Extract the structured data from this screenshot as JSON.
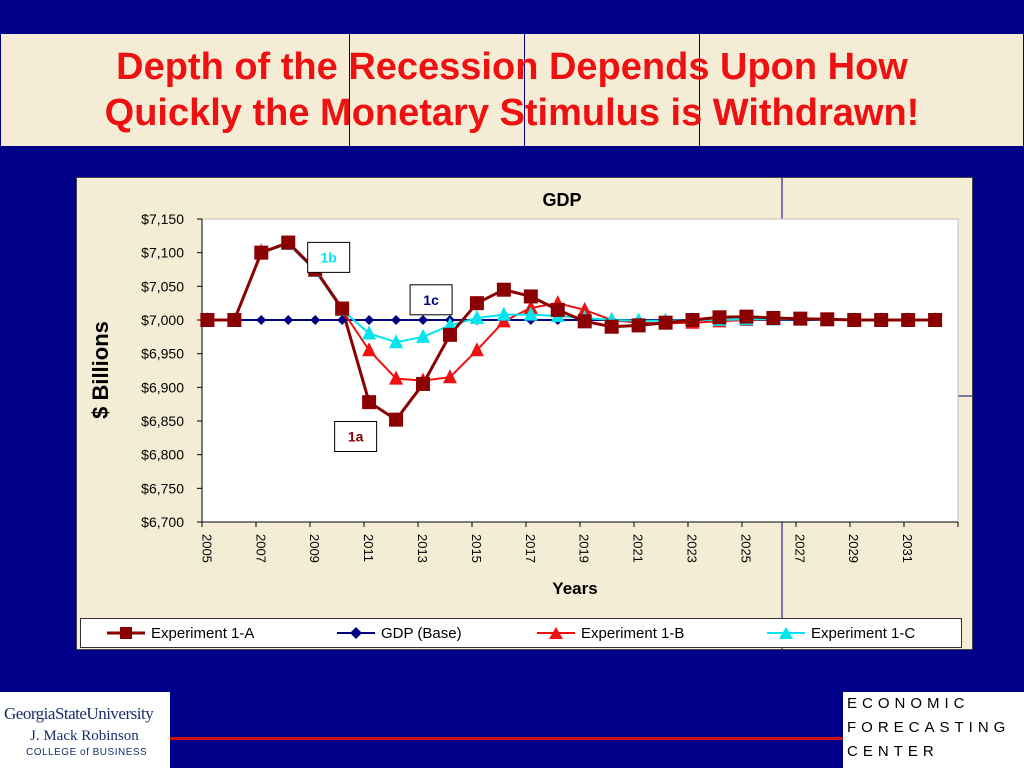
{
  "slide": {
    "title_line1": "Depth of the Recession Depends Upon How",
    "title_line2": "Quickly the Monetary Stimulus is Withdrawn!"
  },
  "logos": {
    "gsu_university": "GeorgiaStateUniversity",
    "gsu_name": "J. Mack Robinson",
    "gsu_college": "COLLEGE of BUSINESS",
    "efc_line1": "ECONOMIC",
    "efc_line2": "FORECASTING",
    "efc_line3": "CENTER"
  },
  "colors": {
    "background": "#00008b",
    "title": "#ee1111",
    "experiment_1a": "#8b0000",
    "gdp_base": "#000080",
    "experiment_1b": "#ee1111",
    "experiment_1c": "#00e5ee"
  },
  "chart_data": {
    "type": "line",
    "title": "GDP",
    "xlabel": "Years",
    "ylabel": "$ Billions",
    "ylim": [
      6700,
      7150
    ],
    "yticks": [
      6700,
      6750,
      6800,
      6850,
      6900,
      6950,
      7000,
      7050,
      7100,
      7150
    ],
    "ytick_labels": [
      "$6,700",
      "$6,750",
      "$6,800",
      "$6,850",
      "$6,900",
      "$6,950",
      "$7,000",
      "$7,050",
      "$7,100",
      "$7,150"
    ],
    "x": [
      2005,
      2006,
      2007,
      2008,
      2009,
      2010,
      2011,
      2012,
      2013,
      2014,
      2015,
      2016,
      2017,
      2018,
      2019,
      2020,
      2021,
      2022,
      2023,
      2024,
      2025,
      2026,
      2027,
      2028,
      2029,
      2030,
      2031,
      2032
    ],
    "xtick_labels": [
      "2005",
      "2007",
      "2009",
      "2011",
      "2013",
      "2015",
      "2017",
      "2019",
      "2021",
      "2023",
      "2025",
      "2027",
      "2029",
      "2031"
    ],
    "grid": false,
    "legend_position": "bottom",
    "series": [
      {
        "name": "Experiment 1-A",
        "marker": "square",
        "color": "#8b0000",
        "values": [
          7000,
          7000,
          7100,
          7115,
          7075,
          7017,
          6878,
          6852,
          6905,
          6978,
          7025,
          7045,
          7035,
          7015,
          6998,
          6990,
          6992,
          6996,
          7000,
          7004,
          7005,
          7003,
          7002,
          7001,
          7000,
          7000,
          7000,
          7000
        ]
      },
      {
        "name": "GDP (Base)",
        "marker": "diamond",
        "color": "#000080",
        "values": [
          7000,
          7000,
          7000,
          7000,
          7000,
          7000,
          7000,
          7000,
          7000,
          7000,
          7000,
          7000,
          7000,
          7000,
          7000,
          7000,
          7000,
          7000,
          7000,
          7000,
          7000,
          7000,
          7000,
          7000,
          7000,
          7000,
          7000,
          7000
        ]
      },
      {
        "name": "Experiment 1-B",
        "marker": "triangle",
        "color": "#ee1111",
        "values": [
          7000,
          7000,
          7102,
          7113,
          7073,
          7015,
          6955,
          6913,
          6910,
          6915,
          6955,
          6998,
          7018,
          7025,
          7015,
          7000,
          6996,
          6995,
          6996,
          6998,
          7000,
          7001,
          7001,
          7000,
          7000,
          7000,
          7000,
          7000
        ]
      },
      {
        "name": "Experiment 1-C",
        "marker": "triangle",
        "color": "#00e5ee",
        "values": [
          7000,
          7000,
          7100,
          7113,
          7073,
          7015,
          6980,
          6967,
          6975,
          6992,
          7003,
          7008,
          7008,
          7006,
          7003,
          7000,
          6999,
          6999,
          7000,
          7000,
          7001,
          7001,
          7001,
          7000,
          7000,
          7000,
          7000,
          7000
        ]
      }
    ],
    "annotations": [
      {
        "label": "1b",
        "x": 2009.5,
        "y": 7093,
        "color": "#00e5ee"
      },
      {
        "label": "1c",
        "x": 2013.3,
        "y": 7030,
        "color": "#000080"
      },
      {
        "label": "1a",
        "x": 2010.5,
        "y": 6827,
        "color": "#8b0000"
      }
    ]
  }
}
